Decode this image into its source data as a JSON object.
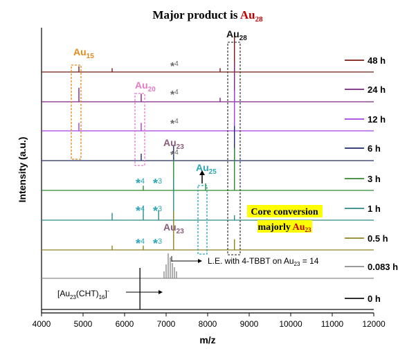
{
  "title": {
    "prefix": "Major product is ",
    "species": "Au",
    "subscript": "28"
  },
  "colors": {
    "accent_red": "#c00000",
    "highlight": "#ffff00",
    "au15": "#e8891a",
    "au20": "#e879c8",
    "au23": "#8c5a7a",
    "au25": "#2aa6b5",
    "dashed_grey": "#555555"
  },
  "chart_data": {
    "type": "line",
    "xlabel": "m/z",
    "ylabel": "Intensity (a.u.)",
    "xlim": [
      4000,
      12000
    ],
    "xticks": [
      4000,
      5000,
      6000,
      7000,
      8000,
      9000,
      10000,
      11000,
      12000
    ],
    "grid": false,
    "legend": "right",
    "series": [
      {
        "name": "48 h",
        "color": "#7b1a12",
        "peaks": [
          [
            4900,
            0.15
          ],
          [
            5700,
            0.1
          ],
          [
            8300,
            0.1
          ],
          [
            8645,
            1.0
          ]
        ]
      },
      {
        "name": "24 h",
        "color": "#7a2580",
        "peaks": [
          [
            4900,
            0.35
          ],
          [
            6400,
            0.2
          ],
          [
            8300,
            0.1
          ],
          [
            8645,
            1.0
          ]
        ]
      },
      {
        "name": "12 h",
        "color": "#a040e0",
        "peaks": [
          [
            4900,
            0.2
          ],
          [
            6400,
            0.2
          ],
          [
            8645,
            1.0
          ]
        ]
      },
      {
        "name": "6 h",
        "color": "#1f2a6e",
        "peaks": [
          [
            6400,
            0.2
          ],
          [
            7180,
            0.45
          ],
          [
            8645,
            1.0
          ]
        ]
      },
      {
        "name": "3 h",
        "color": "#2e8a2e",
        "peaks": [
          [
            6450,
            0.1
          ],
          [
            7180,
            0.65
          ],
          [
            7950,
            0.15
          ],
          [
            8645,
            0.9
          ]
        ]
      },
      {
        "name": "1 h",
        "color": "#2a8a8a",
        "peaks": [
          [
            5700,
            0.15
          ],
          [
            6450,
            0.3
          ],
          [
            6820,
            0.2
          ],
          [
            7180,
            0.85
          ],
          [
            8645,
            0.1
          ]
        ]
      },
      {
        "name": "0.5 h",
        "color": "#8f8420",
        "peaks": [
          [
            5700,
            0.1
          ],
          [
            6450,
            0.1
          ],
          [
            7180,
            0.9
          ],
          [
            8645,
            0.25
          ]
        ]
      },
      {
        "name": "0.083 h",
        "color": "#8c8c8c",
        "peaks": [
          [
            6950,
            0.25
          ],
          [
            7000,
            0.5
          ],
          [
            7050,
            0.9
          ],
          [
            7100,
            0.75
          ],
          [
            7150,
            0.55
          ],
          [
            7200,
            0.4
          ],
          [
            7250,
            0.25
          ]
        ]
      },
      {
        "name": "0 h",
        "color": "#111111",
        "peaks": [
          [
            6370,
            1.0
          ]
        ]
      }
    ]
  },
  "labels": {
    "au15": {
      "base": "Au",
      "sub": "15"
    },
    "au20": {
      "base": "Au",
      "sub": "20"
    },
    "au23_top": {
      "base": "Au",
      "sub": "23"
    },
    "au23_bottom": {
      "base": "Au",
      "sub": "23"
    },
    "au25": {
      "base": "Au",
      "sub": "25"
    },
    "au28": {
      "base": "Au",
      "sub": "28"
    },
    "star": "*",
    "star4": "4",
    "star3": "3",
    "le_prefix": "L.E. with 4-TBBT on Au",
    "le_sub": "23",
    "le_suffix": " = 14",
    "cht_open": "[Au",
    "cht_sub1": "23",
    "cht_mid": "(CHT)",
    "cht_sub2": "16",
    "cht_close": "]",
    "cht_sup": "-",
    "core_line1": "Core conversion",
    "core_line2_prefix": "majorly ",
    "core_line2_species": "Au",
    "core_line2_sub": "23"
  }
}
